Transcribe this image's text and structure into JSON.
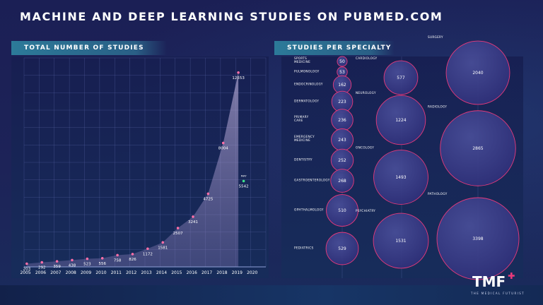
{
  "header": {
    "title": "MACHINE AND DEEP LEARNING STUDIES ON PUBMED.COM"
  },
  "sections": {
    "left_title": "TOTAL NUMBER OF STUDIES",
    "right_title": "STUDIES PER SPECIALTY"
  },
  "branding": {
    "logo_text": "TMF",
    "tagline": "THE MEDICAL FUTURIST"
  },
  "colors": {
    "accent_pink": "#e8397a",
    "point_pink": "#ff6fa8",
    "highlight_green": "#3de08a",
    "grid": "#5a66a8"
  },
  "chart_data": [
    {
      "type": "area",
      "title": "TOTAL NUMBER OF STUDIES",
      "x": [
        "2005",
        "2006",
        "2007",
        "2008",
        "2009",
        "2010",
        "2011",
        "2012",
        "2013",
        "2014",
        "2015",
        "2016",
        "2017",
        "2018",
        "2019",
        "2020"
      ],
      "series": [
        {
          "values": [
            203,
            292,
            359,
            438,
            523,
            556,
            758,
            826,
            1172,
            1581,
            2507,
            3241,
            4725,
            8004,
            12553,
            null
          ]
        }
      ],
      "highlight": {
        "label": "MAY",
        "x": "2019",
        "value": 5542
      },
      "ylim": [
        0,
        13500
      ],
      "grid": true
    },
    {
      "type": "bubble",
      "title": "STUDIES PER SPECIALTY",
      "items": [
        {
          "label": "SPORTS MEDICINE",
          "value": 50,
          "column": 1
        },
        {
          "label": "PULMONOLOGY",
          "value": 53,
          "column": 1
        },
        {
          "label": "ENDOCRINOLOGY",
          "value": 162,
          "column": 1
        },
        {
          "label": "DERMATOLOGY",
          "value": 223,
          "column": 1
        },
        {
          "label": "PRIMARY CARE",
          "value": 236,
          "column": 1
        },
        {
          "label": "EMERGENCY MEDICINE",
          "value": 243,
          "column": 1
        },
        {
          "label": "DENTISTRY",
          "value": 252,
          "column": 1
        },
        {
          "label": "GASTROENTEROLOGY",
          "value": 268,
          "column": 1
        },
        {
          "label": "OPHTHALMOLOGY",
          "value": 510,
          "column": 1
        },
        {
          "label": "PEDIATRICS",
          "value": 529,
          "column": 1
        },
        {
          "label": "CARDIOLOGY",
          "value": 577,
          "column": 2
        },
        {
          "label": "NEUROLOGY",
          "value": 1224,
          "column": 2
        },
        {
          "label": "ONCOLOGY",
          "value": 1493,
          "column": 2
        },
        {
          "label": "PSYCHIATRY",
          "value": 1531,
          "column": 2
        },
        {
          "label": "SURGERY",
          "value": 2040,
          "column": 3
        },
        {
          "label": "RADIOLOGY",
          "value": 2865,
          "column": 3
        },
        {
          "label": "PATHOLOGY",
          "value": 3398,
          "column": 3
        }
      ]
    }
  ]
}
